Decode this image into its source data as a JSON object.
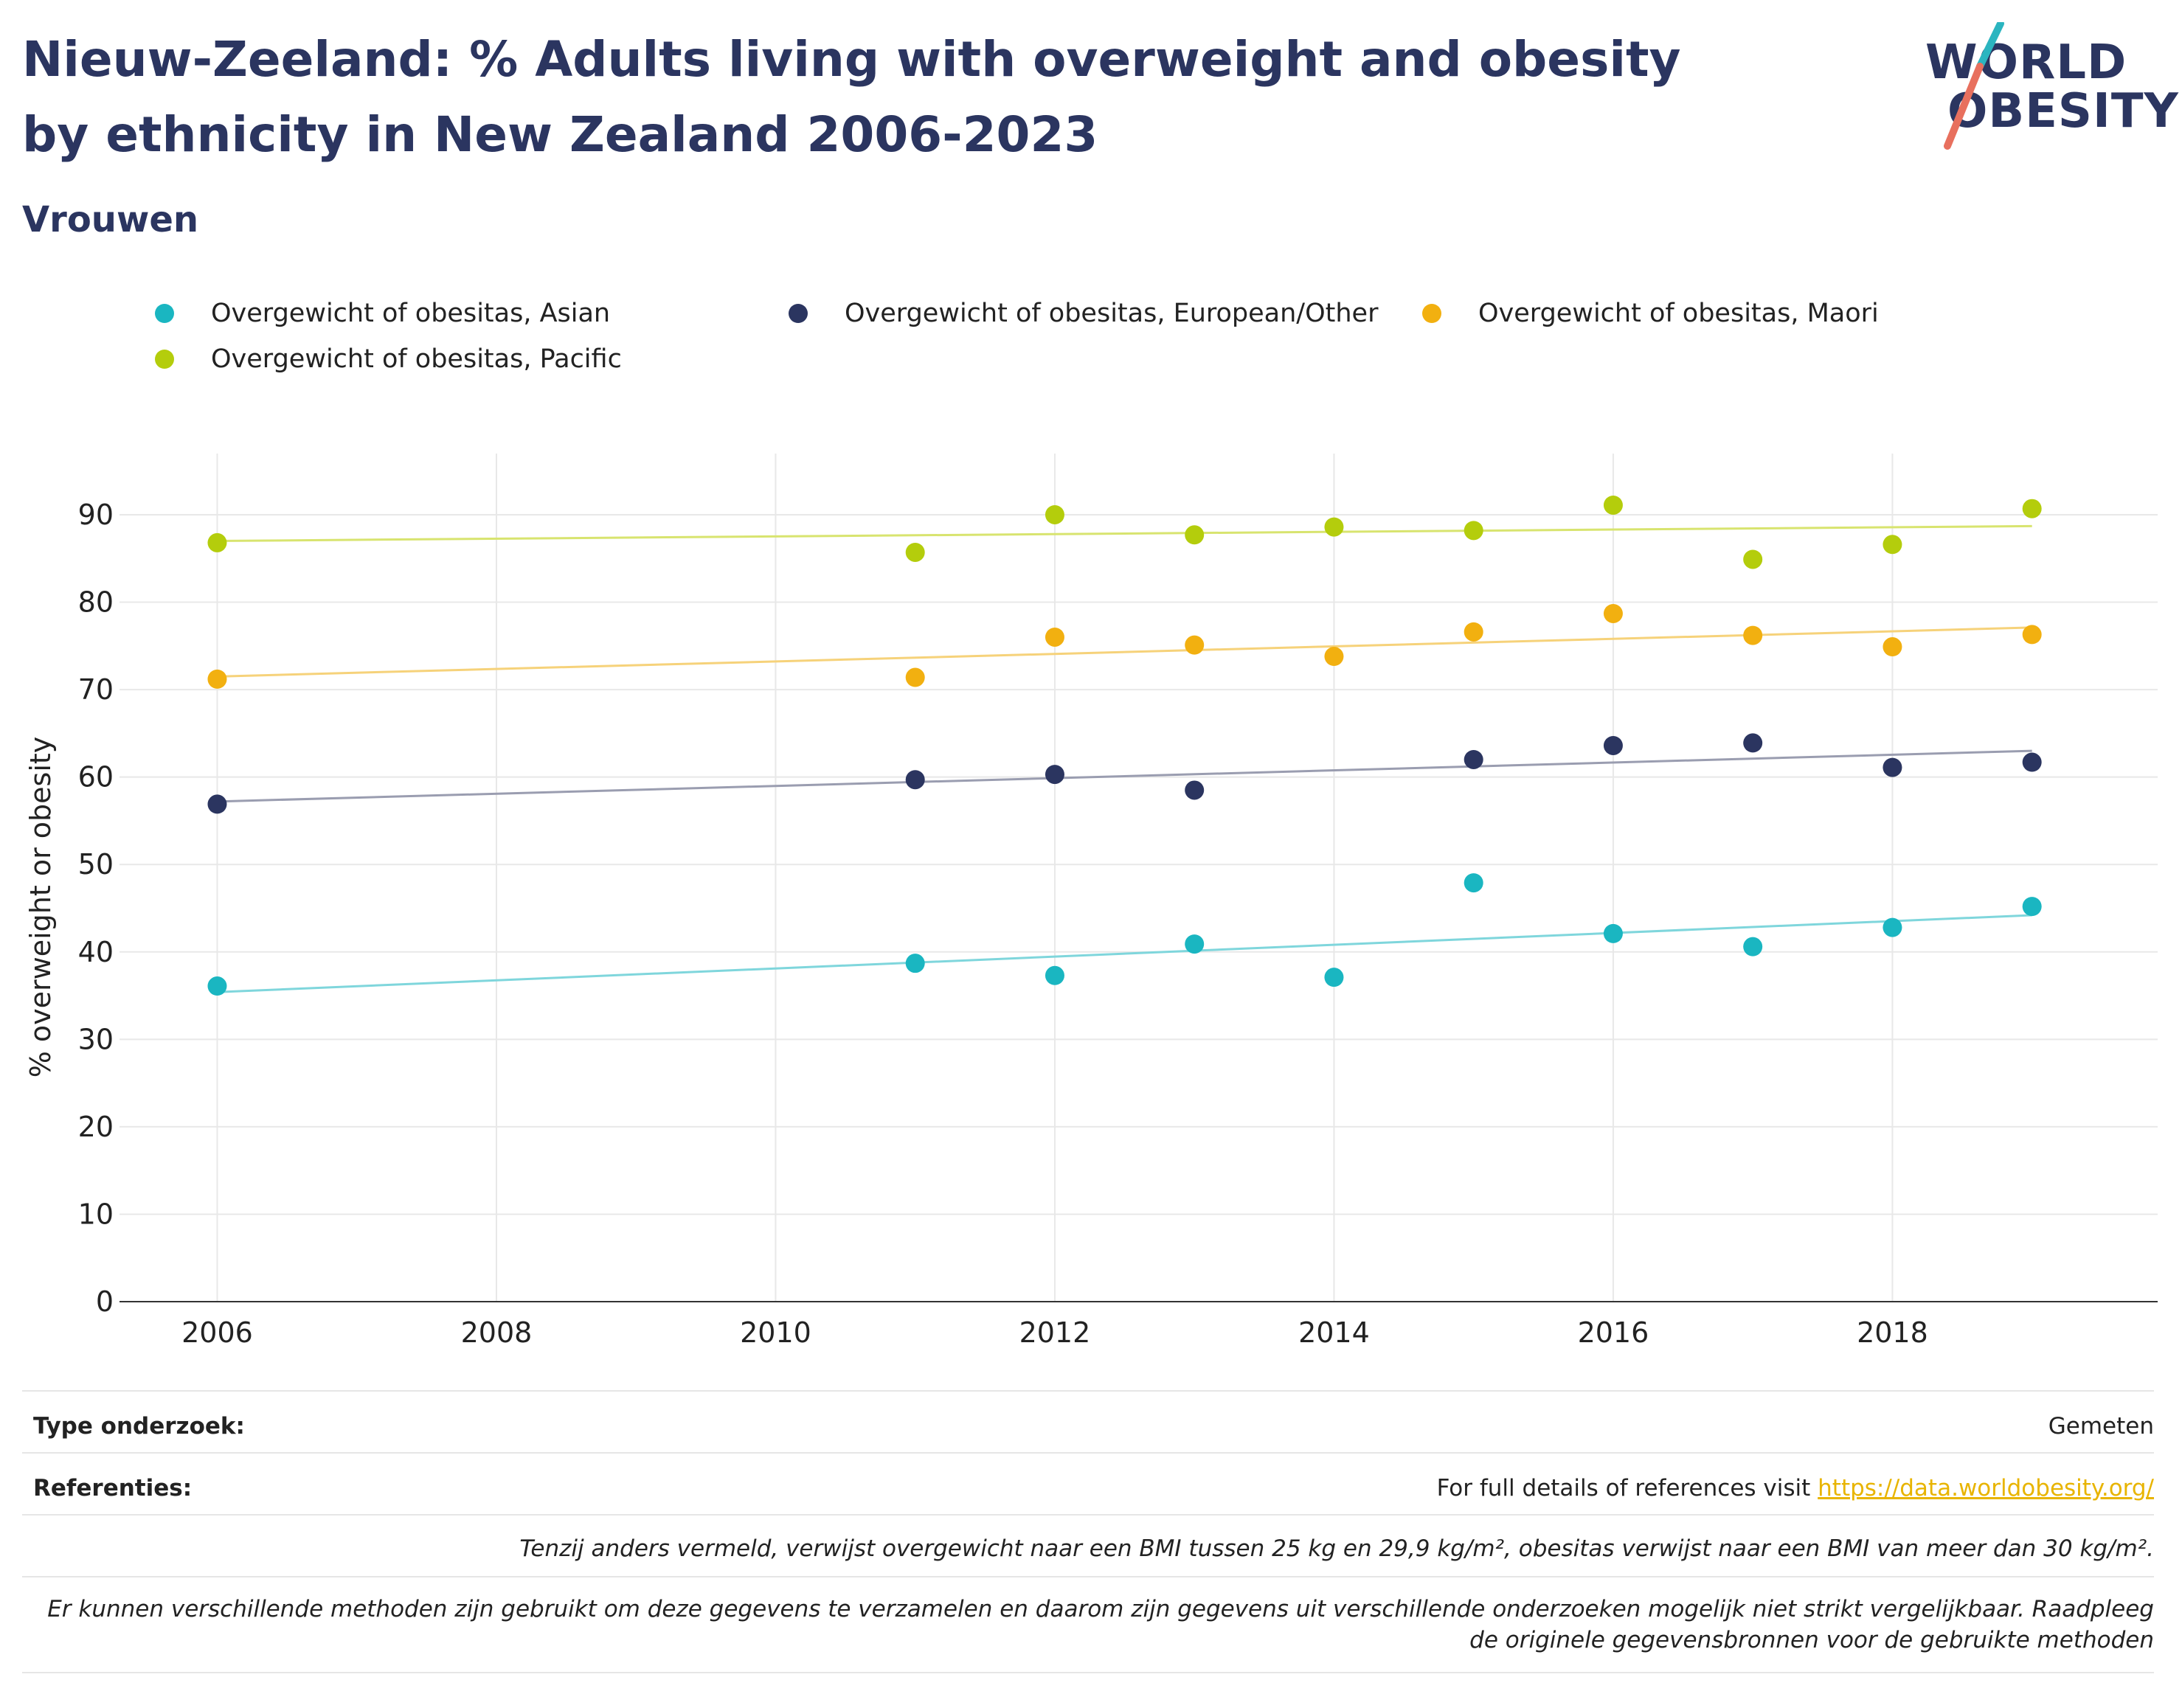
{
  "title": "Nieuw-Zeeland: % Adults living with overweight and obesity by ethnicity in New Zealand 2006-2023",
  "subtitle": "Vrouwen",
  "logo": {
    "line1": "WORLD",
    "line2": "OBESITY",
    "accent_teal": "#2bb5c0",
    "accent_red": "#e8705e"
  },
  "chart_data": {
    "type": "scatter",
    "ylabel": "% overweight or obesity",
    "xlabel": "",
    "xlim": [
      2005.3,
      2019.9
    ],
    "ylim": [
      0,
      97
    ],
    "x_ticks": [
      2006,
      2008,
      2010,
      2012,
      2014,
      2016,
      2018
    ],
    "y_ticks": [
      0,
      10,
      20,
      30,
      40,
      50,
      60,
      70,
      80,
      90
    ],
    "grid": true,
    "legend_position": "top",
    "series": [
      {
        "name": "Overgewicht of obesitas, Asian",
        "color": "#1ab6c1",
        "trend_color": "#7fd6dc",
        "x": [
          2006,
          2011,
          2012,
          2013,
          2014,
          2015,
          2016,
          2017,
          2018,
          2019
        ],
        "y": [
          36.1,
          38.7,
          37.3,
          40.9,
          37.1,
          47.9,
          42.1,
          40.6,
          42.8,
          45.2
        ],
        "trend": [
          [
            2006,
            35.4
          ],
          [
            2019,
            44.2
          ]
        ]
      },
      {
        "name": "Overgewicht of obesitas, European/Other",
        "color": "#2b3560",
        "trend_color": "#9a9db0",
        "x": [
          2006,
          2011,
          2012,
          2013,
          2015,
          2016,
          2017,
          2018,
          2019
        ],
        "y": [
          56.9,
          59.7,
          60.3,
          58.5,
          62.0,
          63.6,
          63.9,
          61.1,
          61.7
        ],
        "trend": [
          [
            2006,
            57.2
          ],
          [
            2019,
            63.0
          ]
        ]
      },
      {
        "name": "Overgewicht of obesitas, Maori",
        "color": "#f2b010",
        "trend_color": "#f6d27a",
        "x": [
          2006,
          2011,
          2012,
          2013,
          2014,
          2015,
          2016,
          2017,
          2018,
          2019
        ],
        "y": [
          71.2,
          71.4,
          76.0,
          75.1,
          73.8,
          76.6,
          78.7,
          76.2,
          74.9,
          76.3
        ],
        "trend": [
          [
            2006,
            71.5
          ],
          [
            2019,
            77.1
          ]
        ]
      },
      {
        "name": "Overgewicht of obesitas, Pacific",
        "color": "#b4cd0c",
        "trend_color": "#d8e46f",
        "x": [
          2006,
          2011,
          2012,
          2013,
          2014,
          2015,
          2016,
          2017,
          2018,
          2019
        ],
        "y": [
          86.8,
          85.7,
          90.0,
          87.7,
          88.6,
          88.2,
          91.1,
          84.9,
          86.6,
          90.7
        ],
        "trend": [
          [
            2006,
            87.0
          ],
          [
            2019,
            88.7
          ]
        ]
      }
    ]
  },
  "footer": {
    "type_label": "Type onderzoek:",
    "type_value": "Gemeten",
    "ref_label": "Referenties:",
    "ref_text": "For full details of references visit ",
    "ref_link": "https://data.worldobesity.org/",
    "note1": "Tenzij anders vermeld, verwijst overgewicht naar een BMI tussen 25 kg en 29,9 kg/m², obesitas verwijst naar een BMI van meer dan 30 kg/m².",
    "note2": "Er kunnen verschillende methoden zijn gebruikt om deze gegevens te verzamelen en daarom zijn gegevens uit verschillende onderzoeken mogelijk niet strikt vergelijkbaar. Raadpleeg de originele gegevensbronnen voor de gebruikte methoden"
  }
}
